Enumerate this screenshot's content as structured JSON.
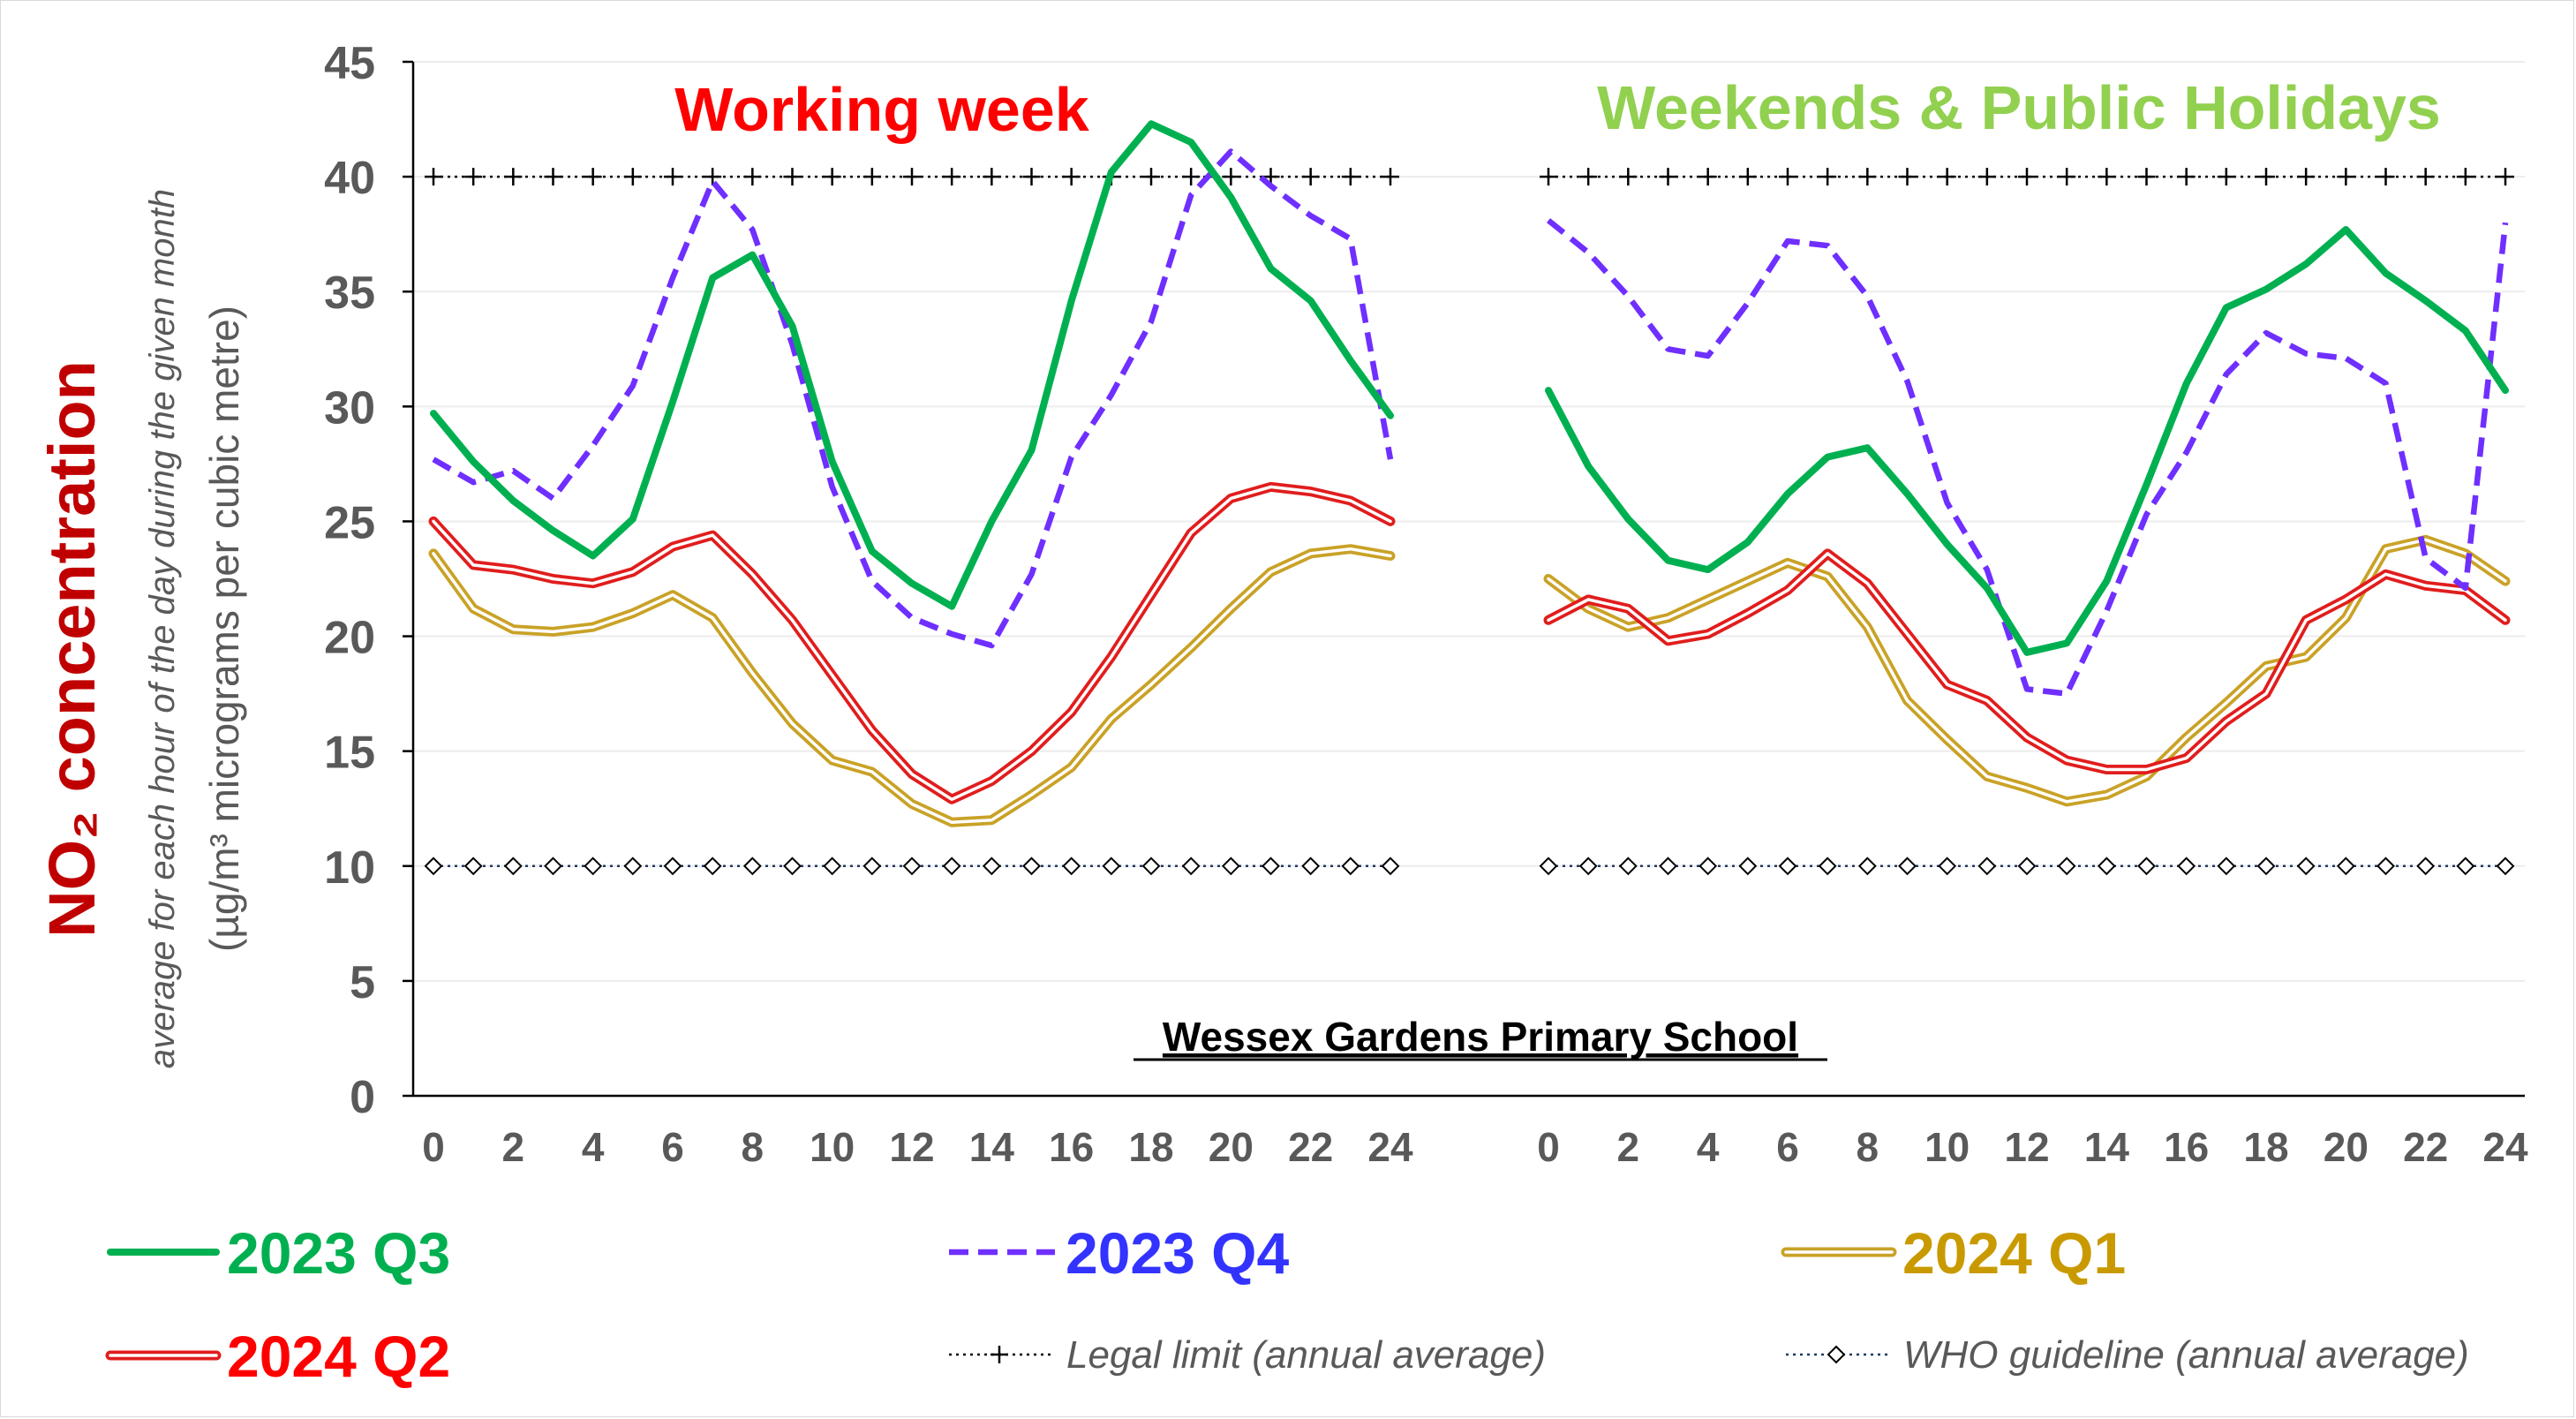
{
  "chart_data": {
    "type": "line",
    "ylim": [
      0,
      45
    ],
    "y_ticks": [
      0,
      5,
      10,
      15,
      20,
      25,
      30,
      35,
      40,
      45
    ],
    "x_ticks": [
      0,
      2,
      4,
      6,
      8,
      10,
      12,
      14,
      16,
      18,
      20,
      22,
      24
    ],
    "grid": true,
    "ylabel": "NO₂ concentration",
    "ylabel_line2": "average for each hour of the day during the given month",
    "ylabel_line3": "(µg/m³ micrograms per cubic metre)",
    "site_label": "Wessex Gardens Primary School",
    "legend_placement": "bottom",
    "colors": {
      "q3": "#00b050",
      "q4": "#6f2fff",
      "q1": "#c9a227",
      "q2": "#e11d1d",
      "legal": "#000000",
      "who": "#1f3864",
      "title_working": "#ff0000",
      "title_weekend": "#92d050",
      "ylabel": "#c00000",
      "ylabel_sub": "#595959"
    },
    "series_meta": [
      {
        "key": "q3",
        "name": "2023 Q3",
        "legend_color": "#00b050",
        "style": "solid"
      },
      {
        "key": "q4",
        "name": "2023 Q4",
        "legend_color": "#3333ff",
        "style": "dashed"
      },
      {
        "key": "q1",
        "name": "2024 Q1",
        "legend_color": "#c99a00",
        "style": "double"
      },
      {
        "key": "q2",
        "name": "2024 Q2",
        "legend_color": "#ff0000",
        "style": "double"
      }
    ],
    "reference_lines": [
      {
        "key": "legal",
        "name": "Legal limit (annual average)",
        "value": 40,
        "marker": "plus"
      },
      {
        "key": "who",
        "name": "WHO guideline (annual average)",
        "value": 10,
        "marker": "diamond"
      }
    ],
    "panels": [
      {
        "title": "Working week",
        "x": [
          0,
          1,
          2,
          3,
          4,
          5,
          6,
          7,
          8,
          9,
          10,
          11,
          12,
          13,
          14,
          15,
          16,
          17,
          18,
          19,
          20,
          21,
          22,
          23,
          24
        ],
        "series": {
          "q3": [
            29.7,
            27.6,
            25.9,
            24.6,
            23.5,
            25.1,
            30.2,
            35.6,
            36.6,
            33.5,
            27.6,
            23.7,
            22.3,
            21.3,
            25.0,
            28.1,
            34.6,
            40.2,
            42.3,
            41.5,
            39.1,
            36.0,
            34.6,
            32.0,
            29.6
          ],
          "q4": [
            27.7,
            26.7,
            27.2,
            26.0,
            28.3,
            30.9,
            35.6,
            39.8,
            37.7,
            32.7,
            26.5,
            22.4,
            20.8,
            20.1,
            19.6,
            22.7,
            27.8,
            30.5,
            33.7,
            39.2,
            41.1,
            39.6,
            38.3,
            37.3,
            27.7
          ],
          "q1": [
            23.6,
            21.2,
            20.3,
            20.2,
            20.4,
            21.0,
            21.8,
            20.8,
            18.4,
            16.2,
            14.6,
            14.1,
            12.7,
            11.9,
            12.0,
            13.1,
            14.3,
            16.4,
            17.9,
            19.5,
            21.2,
            22.8,
            23.6,
            23.8,
            23.5
          ],
          "q2": [
            25.0,
            23.1,
            22.9,
            22.5,
            22.3,
            22.8,
            23.9,
            24.4,
            22.7,
            20.7,
            18.3,
            15.9,
            14.0,
            12.9,
            13.7,
            15.0,
            16.7,
            19.1,
            21.8,
            24.5,
            26.0,
            26.5,
            26.3,
            25.9,
            25.0
          ]
        }
      },
      {
        "title": "Weekends & Public Holidays",
        "x": [
          0,
          1,
          2,
          3,
          4,
          5,
          6,
          7,
          8,
          9,
          10,
          11,
          12,
          13,
          14,
          15,
          16,
          17,
          18,
          19,
          20,
          21,
          22,
          23,
          24
        ],
        "series": {
          "q3": [
            30.7,
            27.4,
            25.1,
            23.3,
            22.9,
            24.1,
            26.2,
            27.8,
            28.2,
            26.2,
            24.0,
            22.1,
            19.3,
            19.7,
            22.4,
            26.6,
            31.0,
            34.3,
            35.1,
            36.2,
            37.7,
            35.8,
            34.6,
            33.3,
            30.7
          ],
          "q4": [
            38.1,
            36.7,
            34.8,
            32.5,
            32.2,
            34.5,
            37.2,
            37.0,
            34.8,
            31.1,
            25.8,
            22.9,
            17.7,
            17.5,
            21.1,
            25.3,
            28.0,
            31.4,
            33.2,
            32.3,
            32.1,
            31.0,
            23.4,
            22.1,
            38.0
          ],
          "q1": [
            22.5,
            21.2,
            20.4,
            20.8,
            21.6,
            22.4,
            23.2,
            22.6,
            20.4,
            17.2,
            15.5,
            13.9,
            13.4,
            12.8,
            13.1,
            13.9,
            15.6,
            17.1,
            18.7,
            19.1,
            20.8,
            23.8,
            24.2,
            23.6,
            22.4
          ],
          "q2": [
            20.7,
            21.6,
            21.2,
            19.8,
            20.1,
            21.0,
            22.0,
            23.6,
            22.3,
            20.1,
            17.9,
            17.2,
            15.6,
            14.6,
            14.2,
            14.2,
            14.7,
            16.3,
            17.5,
            20.7,
            21.6,
            22.7,
            22.2,
            22.0,
            20.7
          ]
        }
      }
    ]
  }
}
